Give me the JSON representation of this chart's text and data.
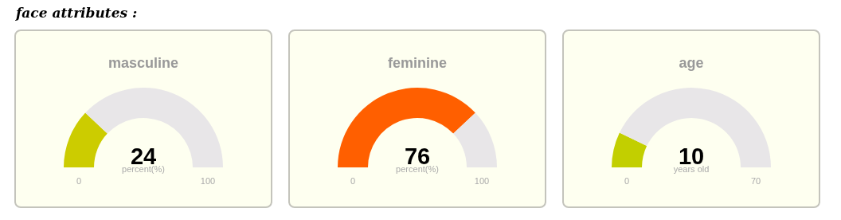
{
  "chart_data": [
    {
      "type": "other",
      "title": "face attributes :"
    },
    {
      "type": "donut",
      "title": "masculine",
      "categories": [
        null,
        null
      ],
      "values": [
        24,
        76
      ],
      "colors": [
        "#cccc00",
        "#e8e6e8"
      ],
      "annotations": [
        "24",
        "percent(%)",
        "0",
        "100"
      ]
    },
    {
      "type": "donut",
      "title": "feminine",
      "categories": [
        null,
        null
      ],
      "values": [
        76,
        24
      ],
      "colors": [
        "#ff5f00",
        "#e8e6e8"
      ],
      "annotations": [
        "76",
        "percent(%)",
        "0",
        "100"
      ]
    },
    {
      "type": "donut",
      "title": "age",
      "categories": [
        null,
        null
      ],
      "values": [
        14.3,
        85.7
      ],
      "colors": [
        "#c2cf00",
        "#e8e6e8"
      ],
      "annotations": [
        "10",
        "years old",
        "0",
        "70"
      ]
    }
  ]
}
